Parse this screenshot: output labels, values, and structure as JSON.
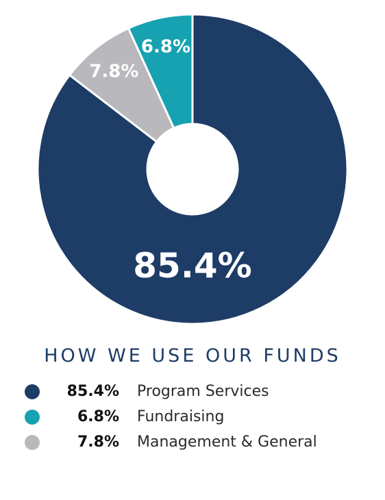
{
  "chart_data": {
    "type": "pie",
    "title": "HOW WE USE OUR FUNDS",
    "labels": [
      "Program Services",
      "Fundraising",
      "Management & General"
    ],
    "values": [
      85.4,
      6.8,
      7.8
    ],
    "value_labels": [
      "85.4%",
      "6.8%",
      "7.8%"
    ],
    "colors": [
      "#1d3c66",
      "#17a2b1",
      "#b9b8bc"
    ],
    "donut": true,
    "legend_position": "bottom"
  }
}
